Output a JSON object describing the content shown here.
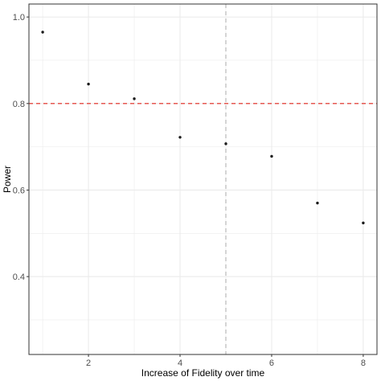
{
  "chart_data": {
    "type": "scatter",
    "title": "",
    "xlabel": "Increase of Fidelity over time",
    "ylabel": "Power",
    "xlim": [
      0.7,
      8.3
    ],
    "ylim": [
      0.22,
      1.03
    ],
    "x_ticks": [
      2,
      4,
      6,
      8
    ],
    "x_tick_labels": [
      "2",
      "4",
      "6",
      "8"
    ],
    "y_ticks": [
      0.4,
      0.6,
      0.8,
      1.0
    ],
    "y_tick_labels": [
      "0.4",
      "0.6",
      "0.8",
      "1.0"
    ],
    "grid": true,
    "legend": "none",
    "points": [
      {
        "x": 1,
        "y": 0.965
      },
      {
        "x": 2,
        "y": 0.845
      },
      {
        "x": 3,
        "y": 0.811
      },
      {
        "x": 4,
        "y": 0.722
      },
      {
        "x": 5,
        "y": 0.707
      },
      {
        "x": 6,
        "y": 0.678
      },
      {
        "x": 7,
        "y": 0.57
      },
      {
        "x": 8,
        "y": 0.524
      }
    ],
    "reference_lines": [
      {
        "orientation": "horizontal",
        "value": 0.8,
        "color": "#e0251b",
        "style": "dashed"
      },
      {
        "orientation": "vertical",
        "value": 5,
        "color": "#b3b3b3",
        "style": "dashed"
      }
    ],
    "colors": {
      "point": "#1a1a1a",
      "grid": "#ebebeb",
      "panel_border": "#333333"
    }
  }
}
